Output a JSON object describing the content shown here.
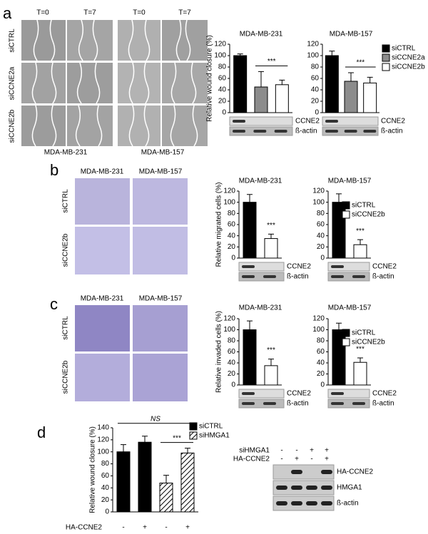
{
  "chart_data": [
    {
      "type": "bar",
      "title": "MDA-MB-231",
      "y_label": "Relative wound closure (%)",
      "ylim": [
        0,
        120
      ],
      "yticks": [
        0,
        20,
        40,
        60,
        80,
        100,
        120
      ],
      "series": [
        {
          "name": "siCTRL",
          "color": "#000000",
          "values": [
            100
          ],
          "errors": [
            3
          ]
        },
        {
          "name": "siCCNE2a",
          "color": "#8c8c8c",
          "values": [
            45
          ],
          "errors": [
            27
          ]
        },
        {
          "name": "siCCNE2b",
          "color": "#ffffff",
          "values": [
            49
          ],
          "errors": [
            8
          ]
        }
      ],
      "annotations": [
        "***"
      ],
      "blot_labels": [
        "CCNE2",
        "ß-actin"
      ]
    },
    {
      "type": "bar",
      "title": "MDA-MB-157",
      "ylim": [
        0,
        120
      ],
      "yticks": [
        0,
        20,
        40,
        60,
        80,
        100,
        120
      ],
      "series": [
        {
          "name": "siCTRL",
          "color": "#000000",
          "values": [
            100
          ],
          "errors": [
            8
          ]
        },
        {
          "name": "siCCNE2a",
          "color": "#8c8c8c",
          "values": [
            55
          ],
          "errors": [
            15
          ]
        },
        {
          "name": "siCCNE2b",
          "color": "#ffffff",
          "values": [
            52
          ],
          "errors": [
            10
          ]
        }
      ],
      "legend": "right",
      "annotations": [
        "***"
      ],
      "blot_labels": [
        "CCNE2",
        "ß-actin"
      ]
    },
    {
      "type": "bar",
      "title": "MDA-MB-231",
      "y_label": "Relative migrated cells (%)",
      "ylim": [
        0,
        120
      ],
      "yticks": [
        0,
        20,
        40,
        60,
        80,
        100,
        120
      ],
      "series": [
        {
          "name": "siCTRL",
          "color": "#000000",
          "values": [
            100
          ],
          "errors": [
            14
          ]
        },
        {
          "name": "siCCNE2b",
          "color": "#ffffff",
          "values": [
            35
          ],
          "errors": [
            8
          ]
        }
      ],
      "annotations": [
        "***"
      ],
      "blot_labels": [
        "CCNE2",
        "ß-actin"
      ]
    },
    {
      "type": "bar",
      "title": "MDA-MB-157",
      "ylim": [
        0,
        120
      ],
      "yticks": [
        0,
        20,
        40,
        60,
        80,
        100,
        120
      ],
      "series": [
        {
          "name": "siCTRL",
          "color": "#000000",
          "values": [
            100
          ],
          "errors": [
            15
          ]
        },
        {
          "name": "siCCNE2b",
          "color": "#ffffff",
          "values": [
            24
          ],
          "errors": [
            9
          ]
        }
      ],
      "legend": "right",
      "annotations": [
        "***"
      ],
      "blot_labels": [
        "CCNE2",
        "ß-actin"
      ]
    },
    {
      "type": "bar",
      "title": "MDA-MB-231",
      "y_label": "Relative invaded cells (%)",
      "ylim": [
        0,
        120
      ],
      "yticks": [
        0,
        20,
        40,
        60,
        80,
        100,
        120
      ],
      "series": [
        {
          "name": "siCTRL",
          "color": "#000000",
          "values": [
            100
          ],
          "errors": [
            16
          ]
        },
        {
          "name": "siCCNE2b",
          "color": "#ffffff",
          "values": [
            35
          ],
          "errors": [
            12
          ]
        }
      ],
      "annotations": [
        "***"
      ],
      "blot_labels": [
        "CCNE2",
        "ß-actin"
      ]
    },
    {
      "type": "bar",
      "title": "MDA-MB-157",
      "ylim": [
        0,
        120
      ],
      "yticks": [
        0,
        20,
        40,
        60,
        80,
        100,
        120
      ],
      "series": [
        {
          "name": "siCTRL",
          "color": "#000000",
          "values": [
            100
          ],
          "errors": [
            12
          ]
        },
        {
          "name": "siCCNE2b",
          "color": "#ffffff",
          "values": [
            41
          ],
          "errors": [
            8
          ]
        }
      ],
      "legend": "right",
      "annotations": [
        "***"
      ],
      "blot_labels": [
        "CCNE2",
        "ß-actin"
      ]
    },
    {
      "type": "bar",
      "y_label": "Relative wound closure (%)",
      "x_label": "HA-CCNE2",
      "categories": [
        "-",
        "+",
        "-",
        "+"
      ],
      "ylim": [
        0,
        140
      ],
      "yticks": [
        0,
        20,
        40,
        60,
        80,
        100,
        120,
        140
      ],
      "series": [
        {
          "name": "siCTRL",
          "color": "#000000",
          "values": [
            100,
            116,
            null,
            null
          ],
          "errors": [
            12,
            10,
            null,
            null
          ]
        },
        {
          "name": "siHMGA1",
          "color": "#ffffff",
          "pattern": "hatch",
          "values": [
            null,
            null,
            48,
            98
          ],
          "errors": [
            null,
            null,
            13,
            8
          ]
        }
      ],
      "legend": "top-right",
      "annotations": [
        "NS",
        "***"
      ],
      "blot": {
        "rows": [
          {
            "name": "siHMGA1",
            "signs": [
              "-",
              "-",
              "+",
              "+"
            ]
          },
          {
            "name": "HA-CCNE2",
            "signs": [
              "-",
              "+",
              "-",
              "+"
            ]
          }
        ],
        "bands": [
          "HA-CCNE2",
          "HMGA1",
          "ß-actin"
        ]
      }
    }
  ],
  "panels": {
    "a": {
      "label": "a",
      "column_labels": [
        "T=0",
        "T=7",
        "T=0",
        "T=7"
      ],
      "row_labels": [
        "siCTRL",
        "siCCNE2a",
        "siCCNE2b"
      ],
      "cell_lines": [
        "MDA-MB-231",
        "MDA-MB-157"
      ]
    },
    "b": {
      "label": "b",
      "column_labels": [
        "MDA-MB-231",
        "MDA-MB-157"
      ],
      "row_labels": [
        "siCTRL",
        "siCCNE2b"
      ]
    },
    "c": {
      "label": "c",
      "column_labels": [
        "MDA-MB-231",
        "MDA-MB-157"
      ],
      "row_labels": [
        "siCTRL",
        "siCCNE2b"
      ]
    },
    "d": {
      "label": "d"
    }
  }
}
